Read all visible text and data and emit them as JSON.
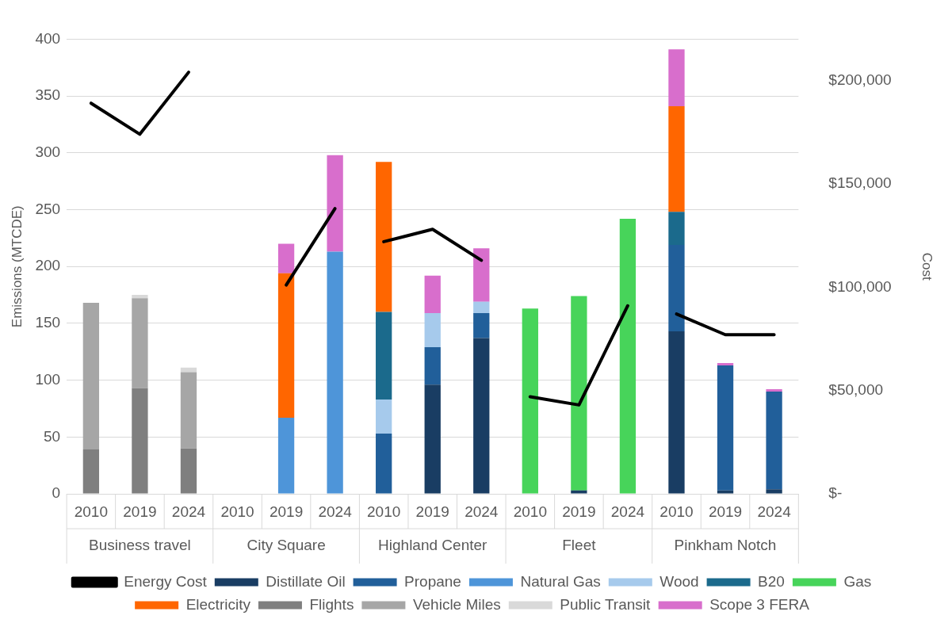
{
  "chart_data": {
    "type": "bar",
    "stacked": true,
    "ylabel": "Emissions (MTCDE)",
    "y2label": "Cost",
    "categories": [
      "2010",
      "2019",
      "2024",
      "2010",
      "2019",
      "2024",
      "2010",
      "2019",
      "2024",
      "2010",
      "2019",
      "2024",
      "2010",
      "2019",
      "2024"
    ],
    "annotations": [
      "Business travel",
      "City Square",
      "Highland Center",
      "Fleet",
      "Pinkham Notch"
    ],
    "series": [
      {
        "name": "Distillate Oil",
        "color": "#193d63",
        "values": [
          null,
          null,
          null,
          null,
          null,
          null,
          null,
          96,
          137,
          null,
          3,
          null,
          143,
          3,
          4
        ]
      },
      {
        "name": "Propane",
        "color": "#215f9a",
        "values": [
          null,
          null,
          null,
          null,
          null,
          null,
          53,
          33,
          22,
          null,
          null,
          null,
          76,
          110,
          86
        ]
      },
      {
        "name": "Natural Gas",
        "color": "#4e95d9",
        "values": [
          null,
          null,
          null,
          null,
          67,
          213,
          null,
          null,
          null,
          null,
          null,
          null,
          null,
          null,
          null
        ]
      },
      {
        "name": "Wood",
        "color": "#a6caec",
        "values": [
          null,
          null,
          null,
          null,
          null,
          null,
          30,
          30,
          10,
          null,
          null,
          null,
          null,
          null,
          null
        ]
      },
      {
        "name": "B20",
        "color": "#1b6a8c",
        "values": [
          null,
          null,
          null,
          null,
          null,
          null,
          77,
          null,
          null,
          null,
          null,
          null,
          29,
          null,
          null
        ]
      },
      {
        "name": "Gas",
        "color": "#47d45a",
        "values": [
          null,
          null,
          null,
          null,
          null,
          null,
          null,
          null,
          null,
          163,
          171,
          242,
          null,
          null,
          null
        ]
      },
      {
        "name": "Electricity",
        "color": "#ff6600",
        "values": [
          null,
          null,
          null,
          null,
          127,
          null,
          132,
          null,
          null,
          null,
          null,
          null,
          93,
          null,
          null
        ]
      },
      {
        "name": "Flights",
        "color": "#7f7f7f",
        "values": [
          39,
          93,
          40,
          null,
          null,
          null,
          null,
          null,
          null,
          null,
          null,
          null,
          null,
          null,
          null
        ]
      },
      {
        "name": "Vehicle Miles",
        "color": "#a6a6a6",
        "values": [
          129,
          79,
          67,
          null,
          null,
          null,
          null,
          null,
          null,
          null,
          null,
          null,
          null,
          null,
          null
        ]
      },
      {
        "name": "Public Transit",
        "color": "#d9d9d9",
        "values": [
          null,
          3,
          4,
          null,
          null,
          null,
          null,
          null,
          null,
          null,
          null,
          null,
          null,
          null,
          null
        ]
      },
      {
        "name": "Scope 3 FERA",
        "color": "#d86ecc",
        "values": [
          null,
          null,
          null,
          null,
          26,
          85,
          null,
          33,
          47,
          null,
          null,
          null,
          50,
          2,
          2
        ]
      },
      {
        "name": "Energy Cost",
        "type": "line",
        "axis": "y2",
        "color": "#000000",
        "values": [
          189000,
          174000,
          204000,
          null,
          101000,
          138000,
          122000,
          128000,
          113000,
          47000,
          43000,
          91000,
          87000,
          77000,
          77000
        ]
      }
    ],
    "ylim": [
      0,
      400
    ],
    "yticks": [
      0,
      50,
      100,
      150,
      200,
      250,
      300,
      350,
      400
    ],
    "y2lim": [
      0,
      220000
    ],
    "y2ticks": [
      {
        "value": 0,
        "label": "$-"
      },
      {
        "value": 50000,
        "label": "$50,000"
      },
      {
        "value": 100000,
        "label": "$100,000"
      },
      {
        "value": 150000,
        "label": "$150,000"
      },
      {
        "value": 200000,
        "label": "$200,000"
      }
    ],
    "grid": "y",
    "legend": "bottom",
    "marker": "none",
    "line_style": "solid"
  }
}
